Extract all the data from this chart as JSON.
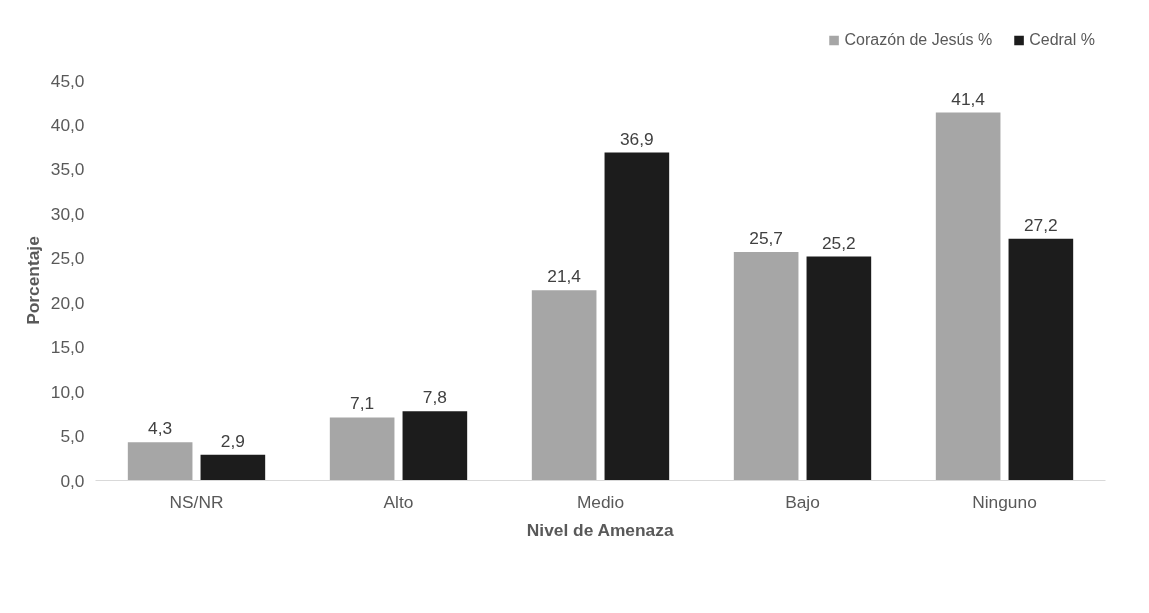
{
  "chart_data": {
    "type": "bar",
    "xlabel": "Nivel de Amenaza",
    "ylabel": "Porcentaje",
    "categories": [
      "NS/NR",
      "Alto",
      "Medio",
      "Bajo",
      "Ninguno"
    ],
    "series": [
      {
        "name": "Corazón de Jesús %",
        "color": "#a6a6a6",
        "values": [
          4.3,
          7.1,
          21.4,
          25.7,
          41.4
        ],
        "value_labels": [
          "4,3",
          "7,1",
          "21,4",
          "25,7",
          "41,4"
        ]
      },
      {
        "name": "Cedral %",
        "color": "#1c1c1c",
        "values": [
          2.9,
          7.8,
          36.9,
          25.2,
          27.2
        ],
        "value_labels": [
          "2,9",
          "7,8",
          "36,9",
          "25,2",
          "27,2"
        ]
      }
    ],
    "ylim": [
      0,
      45
    ],
    "yticks": [
      {
        "value": 0,
        "label": "0,0"
      },
      {
        "value": 5,
        "label": "5,0"
      },
      {
        "value": 10,
        "label": "10,0"
      },
      {
        "value": 15,
        "label": "15,0"
      },
      {
        "value": 20,
        "label": "20,0"
      },
      {
        "value": 25,
        "label": "25,0"
      },
      {
        "value": 30,
        "label": "30,0"
      },
      {
        "value": 35,
        "label": "35,0"
      },
      {
        "value": 40,
        "label": "40,0"
      },
      {
        "value": 45,
        "label": "45,0"
      }
    ],
    "grid": false,
    "legend": "top right"
  }
}
